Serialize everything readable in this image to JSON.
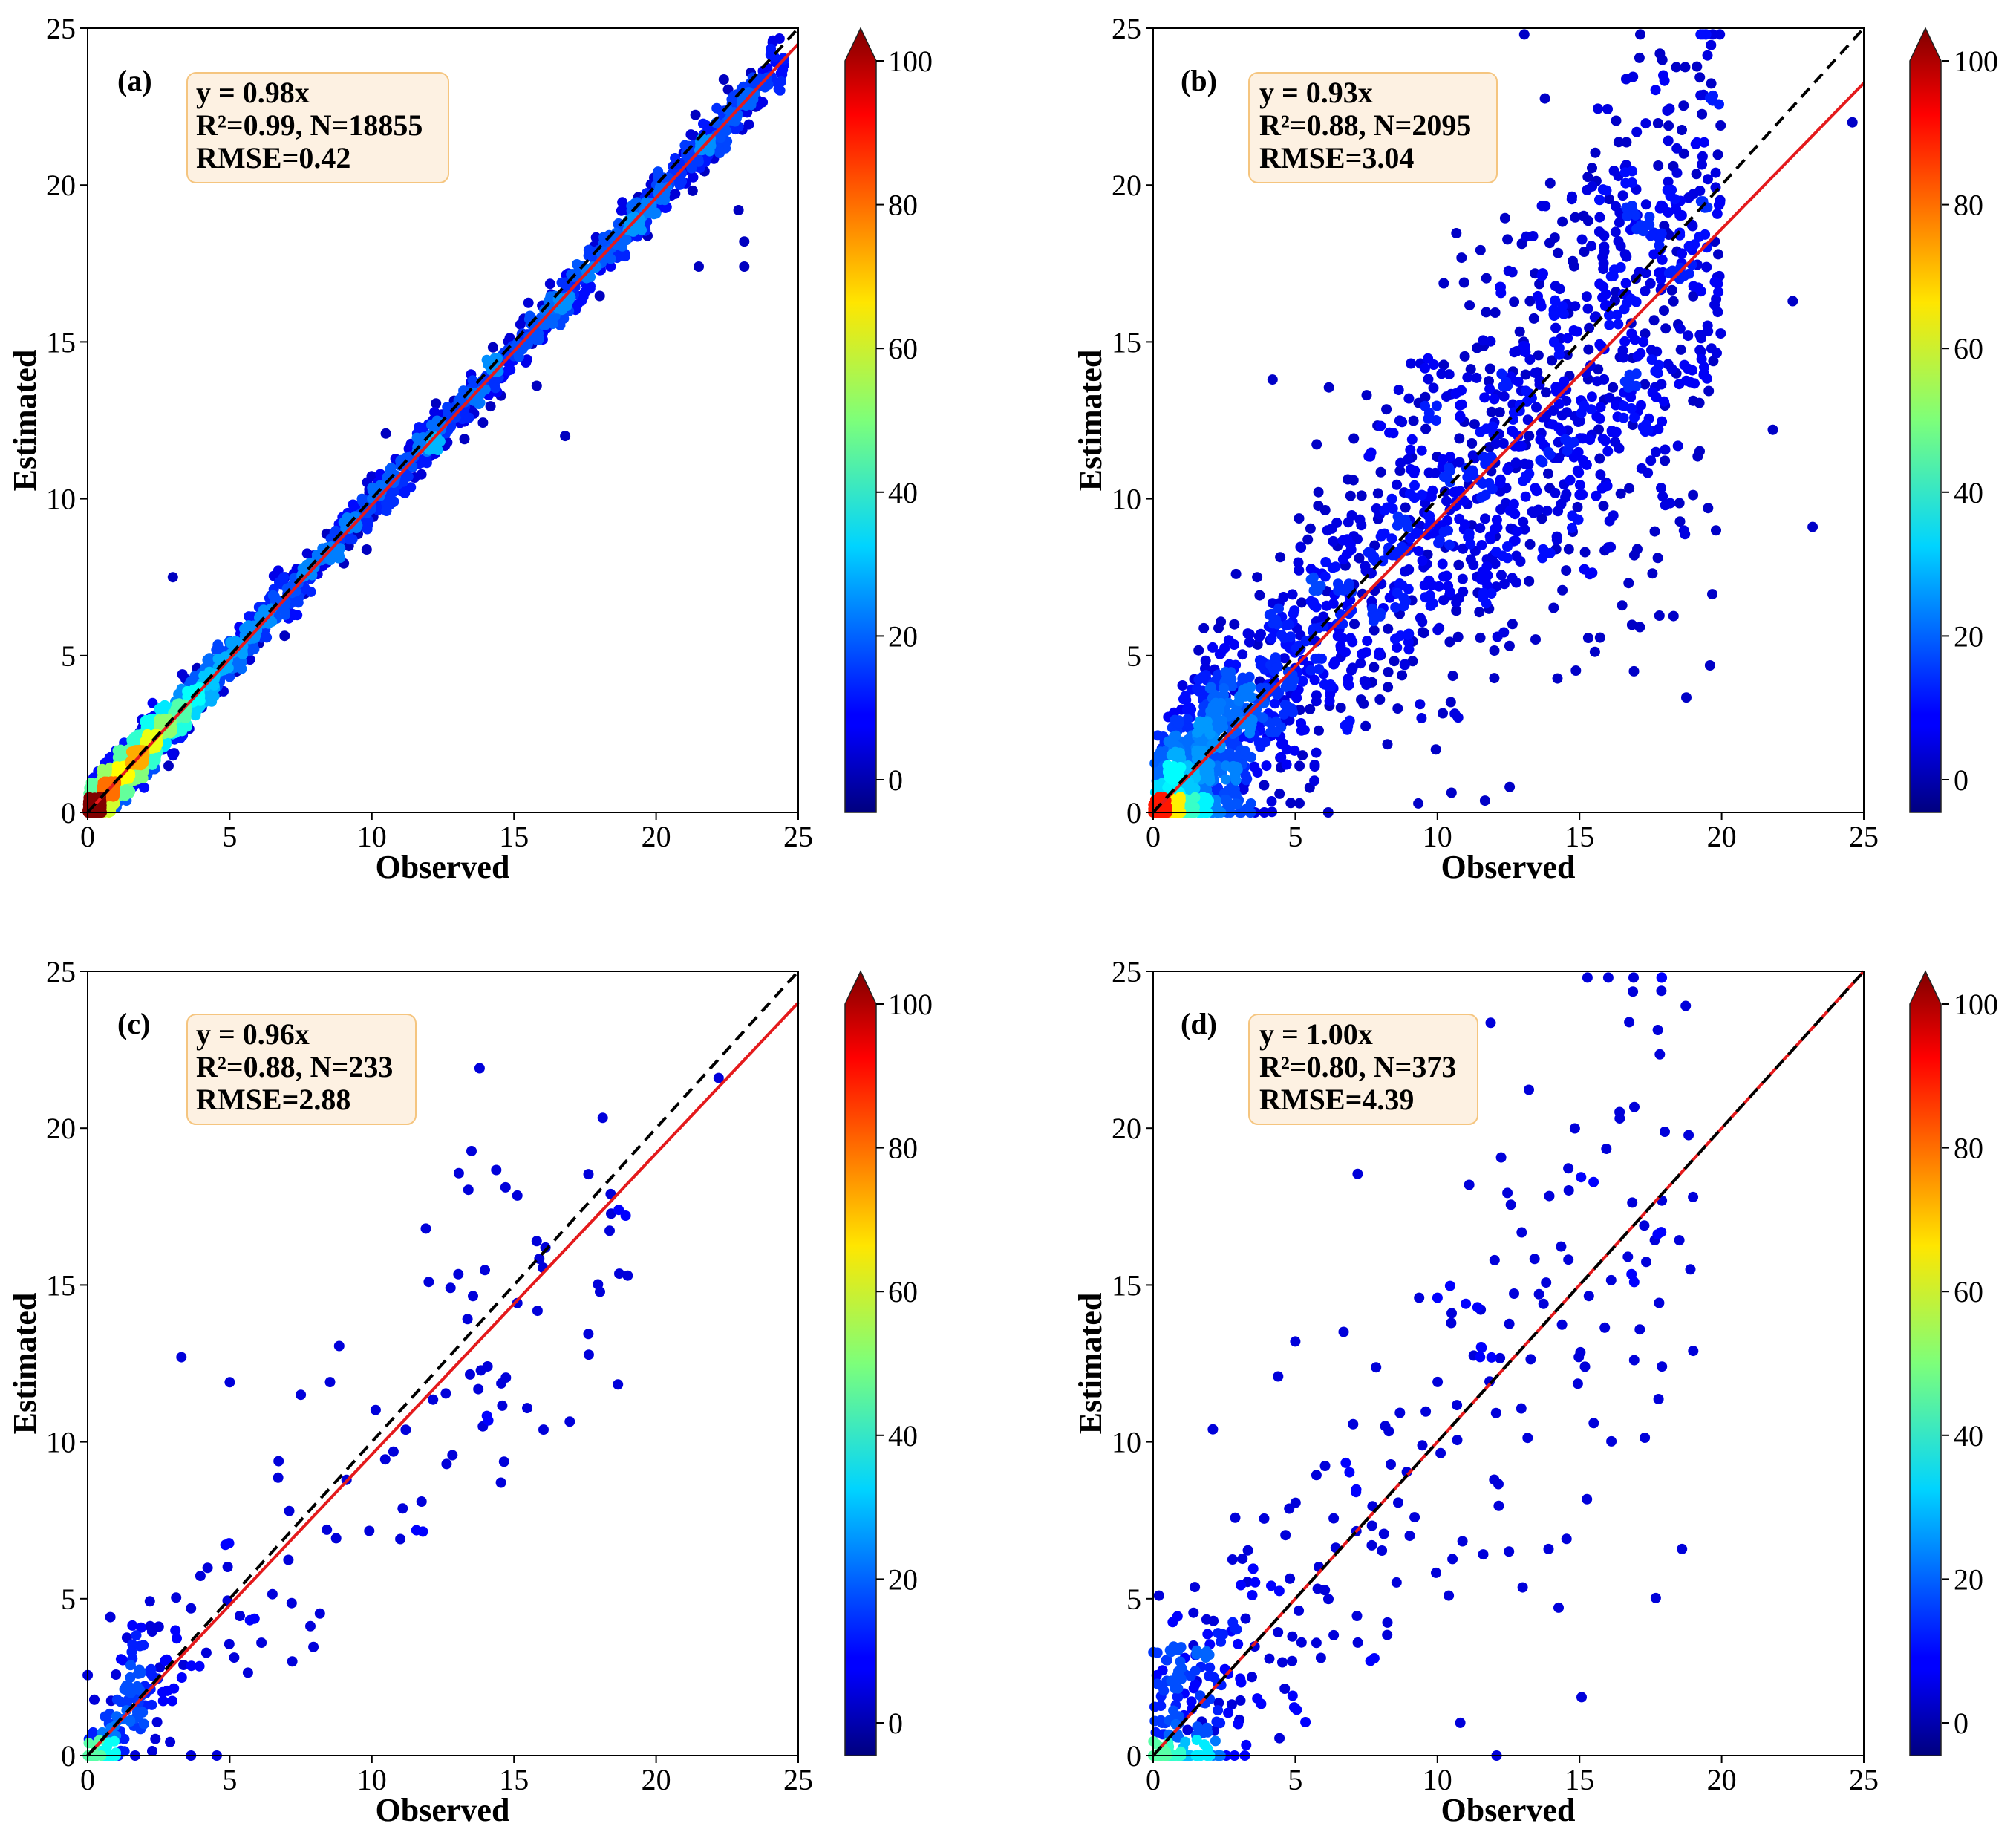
{
  "colors": {
    "fit_line": "#e41a1c",
    "identity_line": "#000000",
    "stats_box_fill": "#fdf1e2",
    "stats_box_border": "#f5c57f",
    "colormap": "jet"
  },
  "chart_data": [
    {
      "type": "scatter",
      "panel_label": "(a)",
      "xlabel": "Observed",
      "ylabel": "Estimated",
      "xlim": [
        0,
        25
      ],
      "ylim": [
        0,
        25
      ],
      "xticks": [
        "0",
        "5",
        "10",
        "15",
        "20",
        "25"
      ],
      "yticks": [
        "0",
        "5",
        "10",
        "15",
        "20",
        "25"
      ],
      "stats": {
        "line1": "y = 0.98x",
        "line2": "R²=0.99, N=18855",
        "line3": "RMSE=0.42"
      },
      "fit_slope": 0.98,
      "identity_line": true,
      "colorbar": {
        "min": 0,
        "max": 100,
        "ticks": [
          "0",
          "20",
          "40",
          "60",
          "80",
          "100"
        ]
      },
      "point_spread": 0.42,
      "highlight_points": [
        [
          23.1,
          17.4
        ],
        [
          23.1,
          18.2
        ],
        [
          22.9,
          19.2
        ],
        [
          21.5,
          17.4
        ],
        [
          16.8,
          12.0
        ],
        [
          15.8,
          13.6
        ],
        [
          3.0,
          7.5
        ],
        [
          24.4,
          23.3
        ]
      ]
    },
    {
      "type": "scatter",
      "panel_label": "(b)",
      "xlabel": "Observed",
      "ylabel": "Estimated",
      "xlim": [
        0,
        25
      ],
      "ylim": [
        0,
        25
      ],
      "xticks": [
        "0",
        "5",
        "10",
        "15",
        "20",
        "25"
      ],
      "yticks": [
        "0",
        "5",
        "10",
        "15",
        "20",
        "25"
      ],
      "stats": {
        "line1": "y = 0.93x",
        "line2": "R²=0.88, N=2095",
        "line3": "RMSE=3.04"
      },
      "fit_slope": 0.93,
      "identity_line": true,
      "colorbar": {
        "min": 0,
        "max": 100,
        "ticks": [
          "0",
          "20",
          "40",
          "60",
          "80",
          "100"
        ]
      },
      "point_spread": 3.04,
      "highlight_points": [
        [
          23.2,
          9.1
        ],
        [
          16.5,
          6.6
        ],
        [
          4.2,
          13.8
        ],
        [
          18.3,
          20.6
        ],
        [
          24.6,
          22.0
        ],
        [
          22.5,
          16.3
        ],
        [
          21.8,
          12.2
        ],
        [
          2.5,
          0.6
        ]
      ]
    },
    {
      "type": "scatter",
      "panel_label": "(c)",
      "xlabel": "Observed",
      "ylabel": "Estimated",
      "xlim": [
        0,
        25
      ],
      "ylim": [
        0,
        25
      ],
      "xticks": [
        "0",
        "5",
        "10",
        "15",
        "20",
        "25"
      ],
      "yticks": [
        "0",
        "5",
        "10",
        "15",
        "20",
        "25"
      ],
      "stats": {
        "line1": "y = 0.96x",
        "line2": "R²=0.88, N=233",
        "line3": "RMSE=2.88"
      },
      "fit_slope": 0.96,
      "identity_line": true,
      "colorbar": {
        "min": 0,
        "max": 100,
        "ticks": [
          "0",
          "20",
          "40",
          "60",
          "80",
          "100"
        ]
      },
      "point_spread": 2.88,
      "highlight_points": [
        [
          3.3,
          12.7
        ],
        [
          5.0,
          11.9
        ],
        [
          11.9,
          16.8
        ],
        [
          15.8,
          16.4
        ],
        [
          19.0,
          15.3
        ],
        [
          22.2,
          21.6
        ],
        [
          18.4,
          17.9
        ],
        [
          11.0,
          6.9
        ],
        [
          7.2,
          3.0
        ],
        [
          12.0,
          15.1
        ],
        [
          7.5,
          11.5
        ]
      ]
    },
    {
      "type": "scatter",
      "panel_label": "(d)",
      "xlabel": "Observed",
      "ylabel": "Estimated",
      "xlim": [
        0,
        25
      ],
      "ylim": [
        0,
        25
      ],
      "xticks": [
        "0",
        "5",
        "10",
        "15",
        "20",
        "25"
      ],
      "yticks": [
        "0",
        "5",
        "10",
        "15",
        "20",
        "25"
      ],
      "stats": {
        "line1": "y = 1.00x",
        "line2": "R²=0.80, N=373",
        "line3": "RMSE=4.39"
      },
      "fit_slope": 1.0,
      "identity_line": true,
      "colorbar": {
        "min": 0,
        "max": 100,
        "ticks": [
          "0",
          "20",
          "40",
          "60",
          "80",
          "100"
        ]
      },
      "point_spread": 4.39,
      "highlight_points": [
        [
          10.4,
          5.1
        ],
        [
          16.7,
          15.9
        ],
        [
          18.9,
          15.5
        ],
        [
          19.0,
          12.9
        ],
        [
          2.1,
          10.4
        ],
        [
          5.0,
          13.2
        ],
        [
          11.0,
          14.4
        ],
        [
          15.5,
          10.6
        ],
        [
          17.9,
          12.4
        ],
        [
          0.2,
          5.1
        ],
        [
          7.2,
          3.6
        ]
      ]
    }
  ]
}
